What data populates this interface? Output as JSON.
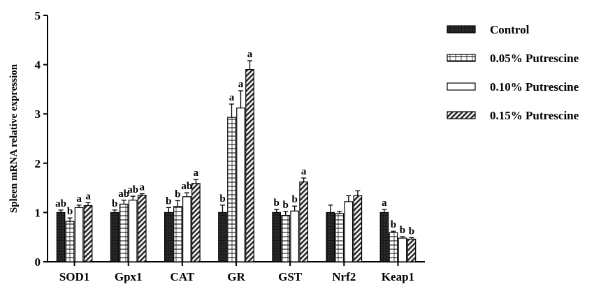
{
  "chart_data": {
    "type": "bar",
    "title": "",
    "xlabel": "",
    "ylabel": "Spleen mRNA relative expression",
    "ylim": [
      0,
      5
    ],
    "yticks": [
      "0",
      "1",
      "2",
      "3",
      "4",
      "5"
    ],
    "categories": [
      "SOD1",
      "Gpx1",
      "CAT",
      "GR",
      "GST",
      "Nrf2",
      "Keap1"
    ],
    "legend_position": "right",
    "series": [
      {
        "name": "Control",
        "pattern": "solid-grid",
        "values": [
          1.0,
          1.0,
          1.0,
          1.0,
          1.0,
          1.0,
          1.0
        ],
        "errors": [
          0.05,
          0.05,
          0.1,
          0.15,
          0.06,
          0.15,
          0.06
        ],
        "labels": [
          "ab",
          "b",
          "b",
          "b",
          "b",
          "",
          "a"
        ]
      },
      {
        "name": "0.05% Putrescine",
        "pattern": "horizontal-lines",
        "values": [
          0.82,
          1.17,
          1.12,
          2.93,
          0.94,
          0.98,
          0.59
        ],
        "errors": [
          0.07,
          0.08,
          0.12,
          0.27,
          0.08,
          0.04,
          0.03
        ],
        "labels": [
          "b",
          "ab",
          "b",
          "a",
          "b",
          "",
          "b"
        ]
      },
      {
        "name": "0.10% Putrescine",
        "pattern": "open",
        "values": [
          1.1,
          1.25,
          1.32,
          3.12,
          1.03,
          1.22,
          0.48
        ],
        "errors": [
          0.05,
          0.08,
          0.08,
          0.35,
          0.1,
          0.12,
          0.03
        ],
        "labels": [
          "a",
          "ab",
          "ab",
          "a",
          "b",
          "",
          "b"
        ]
      },
      {
        "name": "0.15% Putrescine",
        "pattern": "diagonal-hatch",
        "values": [
          1.14,
          1.35,
          1.59,
          3.9,
          1.62,
          1.34,
          0.46
        ],
        "errors": [
          0.06,
          0.03,
          0.08,
          0.18,
          0.08,
          0.1,
          0.03
        ],
        "labels": [
          "a",
          "a",
          "a",
          "a",
          "a",
          "",
          "b"
        ]
      }
    ]
  }
}
